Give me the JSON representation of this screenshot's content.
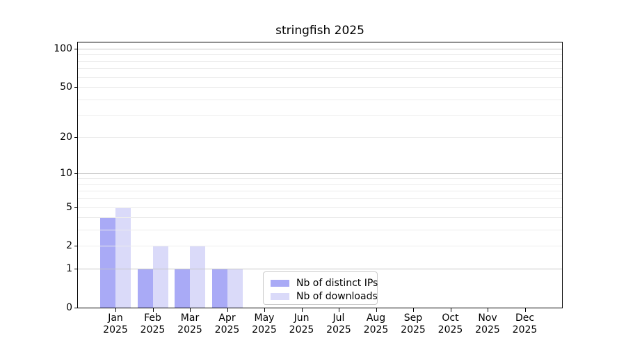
{
  "title": "stringfish 2025",
  "chart_data": {
    "type": "bar",
    "title": "stringfish 2025",
    "categories": [
      "Jan",
      "Feb",
      "Mar",
      "Apr",
      "May",
      "Jun",
      "Jul",
      "Aug",
      "Sep",
      "Oct",
      "Nov",
      "Dec"
    ],
    "year": "2025",
    "series": [
      {
        "key": "distinct-ips",
        "name": "Nb of distinct IPs",
        "color": "#a9aaf6",
        "values": [
          4,
          1,
          1,
          1,
          0,
          0,
          0,
          0,
          0,
          0,
          0,
          0
        ]
      },
      {
        "key": "downloads",
        "name": "Nb of downloads",
        "color": "#dadaf9",
        "values": [
          5,
          2,
          2,
          1,
          0,
          0,
          0,
          0,
          0,
          0,
          0,
          0
        ]
      }
    ],
    "y_scale": "log1p",
    "y_ticks": [
      0,
      1,
      2,
      5,
      10,
      20,
      50,
      100
    ],
    "y_major_gridlines": [
      1,
      10,
      100
    ],
    "y_minor_gridlines": [
      3,
      4,
      6,
      7,
      8,
      9,
      30,
      40,
      60,
      70,
      80,
      90
    ],
    "ylim": [
      0,
      113
    ],
    "grid": "on",
    "legend_position": "lower center inside plot",
    "xlabel": "",
    "ylabel": ""
  },
  "colors": {
    "background": "#ffffff",
    "spine": "#000000",
    "major_grid": "#c6c6c6",
    "minor_grid": "#ececec",
    "legend_border": "#cccccc"
  }
}
